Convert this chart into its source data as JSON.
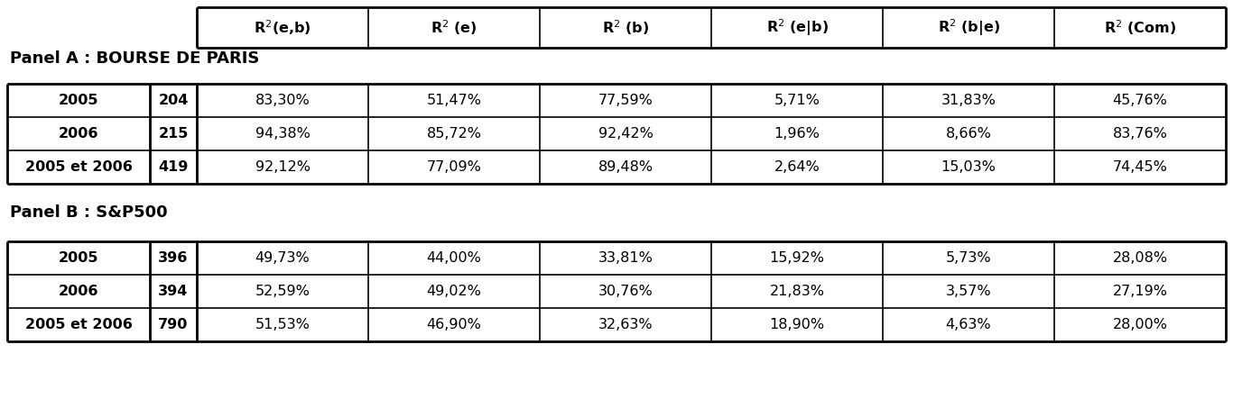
{
  "panel_a_label": "Panel A : BOURSE DE PARIS",
  "panel_b_label": "Panel B : S&P500",
  "header_render": [
    "R$^2$(e,b)",
    "R$^2$ (e)",
    "R$^2$ (b)",
    "R$^2$ (e|b)",
    "R$^2$ (b|e)",
    "R$^2$ (Com)"
  ],
  "panel_a_rows": [
    [
      "2005",
      "204",
      "83,30%",
      "51,47%",
      "77,59%",
      "5,71%",
      "31,83%",
      "45,76%"
    ],
    [
      "2006",
      "215",
      "94,38%",
      "85,72%",
      "92,42%",
      "1,96%",
      "8,66%",
      "83,76%"
    ],
    [
      "2005 et 2006",
      "419",
      "92,12%",
      "77,09%",
      "89,48%",
      "2,64%",
      "15,03%",
      "74,45%"
    ]
  ],
  "panel_b_rows": [
    [
      "2005",
      "396",
      "49,73%",
      "44,00%",
      "33,81%",
      "15,92%",
      "5,73%",
      "28,08%"
    ],
    [
      "2006",
      "394",
      "52,59%",
      "49,02%",
      "30,76%",
      "21,83%",
      "3,57%",
      "27,19%"
    ],
    [
      "2005 et 2006",
      "790",
      "51,53%",
      "46,90%",
      "32,63%",
      "18,90%",
      "4,63%",
      "28,00%"
    ]
  ],
  "bg_color": "#ffffff",
  "text_color": "#000000",
  "font_size": 11.5,
  "header_font_size": 11.5,
  "panel_font_size": 13,
  "fig_width": 13.66,
  "fig_height": 4.63,
  "dpi": 100
}
